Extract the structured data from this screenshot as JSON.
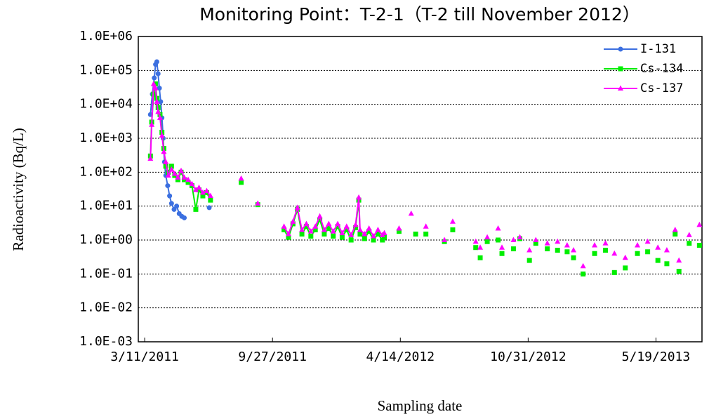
{
  "chart_data": {
    "type": "line",
    "title": "Monitoring Point：T-2-1（T-2 till November 2012）",
    "x_label": "Sampling date",
    "y_label": "Radioactivity (Bq/L)",
    "log_y": true,
    "grid": true,
    "legend": "upper right",
    "xlim": [
      "3/1/2011",
      "7/30/2013"
    ],
    "xticks": [
      "3/11/2011",
      "9/27/2011",
      "4/14/2012",
      "10/31/2012",
      "5/19/2013"
    ],
    "ylim": [
      0.001,
      1000000
    ],
    "yticks": [
      {
        "value": 0.001,
        "label": "1.0E-03"
      },
      {
        "value": 0.01,
        "label": "1.0E-02"
      },
      {
        "value": 0.1,
        "label": "1.0E-01"
      },
      {
        "value": 1,
        "label": "1.0E+00"
      },
      {
        "value": 10,
        "label": "1.0E+01"
      },
      {
        "value": 100,
        "label": "1.0E+02"
      },
      {
        "value": 1000,
        "label": "1.0E+03"
      },
      {
        "value": 10000,
        "label": "1.0E+04"
      },
      {
        "value": 100000,
        "label": "1.0E+05"
      },
      {
        "value": 1000000,
        "label": "1.0E+06"
      }
    ],
    "series": [
      {
        "name": "I-131",
        "color": "#3b6fe0",
        "marker": "circle",
        "x": [
          "3/20/2011",
          "3/23/2011",
          "3/26/2011",
          "3/28/2011",
          "3/30/2011",
          "4/1/2011",
          "4/3/2011",
          "4/5/2011",
          "4/7/2011",
          "4/9/2011",
          "4/11/2011",
          "4/13/2011",
          "4/16/2011",
          "4/19/2011",
          "4/22/2011",
          "4/26/2011",
          "4/30/2011",
          "5/4/2011",
          "5/8/2011",
          "5/12/2011",
          null,
          "6/20/2011"
        ],
        "values": [
          5000,
          20000,
          60000,
          150000,
          180000,
          80000,
          30000,
          12000,
          4000,
          1000,
          200,
          80,
          40,
          20,
          12,
          8,
          10,
          6,
          5,
          4.5,
          null,
          9
        ]
      },
      {
        "name": "Cs-134",
        "color": "#00ee00",
        "marker": "square",
        "x": [
          "3/20/2011",
          "3/22/2011",
          "3/25/2011",
          "3/28/2011",
          "3/30/2011",
          "4/1/2011",
          "4/4/2011",
          "4/7/2011",
          "4/10/2011",
          "4/13/2011",
          "4/17/2011",
          "4/22/2011",
          "4/27/2011",
          "5/2/2011",
          "5/7/2011",
          "5/12/2011",
          "5/18/2011",
          "5/24/2011",
          "5/30/2011",
          "6/4/2011",
          "6/10/2011",
          "6/16/2011",
          "6/22/2011",
          null,
          "8/9/2011",
          null,
          "9/4/2011",
          null,
          "10/15/2011",
          "10/22/2011",
          "10/29/2011",
          "11/5/2011",
          "11/12/2011",
          "11/19/2011",
          "11/26/2011",
          "12/3/2011",
          "12/10/2011",
          "12/17/2011",
          "12/24/2011",
          "12/31/2011",
          "1/7/2012",
          "1/14/2012",
          "1/21/2012",
          "1/28/2012",
          "2/4/2012",
          "2/9/2012",
          "2/11/2012",
          "2/18/2012",
          "2/25/2012",
          "3/3/2012",
          "3/10/2012",
          "3/17/2012",
          "3/20/2012",
          null,
          "4/12/2012",
          null,
          "5/8/2012",
          null,
          "5/24/2012",
          null,
          "6/22/2012",
          null,
          "7/5/2012",
          null,
          "8/10/2012",
          null,
          "8/17/2012",
          null,
          "8/28/2012",
          null,
          "9/14/2012",
          null,
          "9/20/2012",
          null,
          "10/8/2012",
          null,
          "10/18/2012",
          null,
          "11/2/2012",
          null,
          "11/12/2012",
          null,
          "11/30/2012",
          null,
          "12/16/2012",
          null,
          "12/31/2012",
          null,
          "1/10/2013",
          null,
          "1/25/2013",
          null,
          "2/12/2013",
          null,
          "3/1/2013",
          null,
          "3/15/2013",
          null,
          "4/1/2013",
          null,
          "4/20/2013",
          null,
          "5/6/2013",
          null,
          "5/22/2013",
          null,
          "6/5/2013",
          null,
          "6/18/2013",
          null,
          "6/24/2013",
          null,
          "7/10/2013",
          null,
          "7/26/2013"
        ],
        "values": [
          300,
          3000,
          20000,
          40000,
          15000,
          8000,
          5000,
          1500,
          500,
          150,
          100,
          150,
          80,
          60,
          100,
          60,
          50,
          40,
          8,
          30,
          20,
          25,
          15,
          null,
          50,
          null,
          11,
          null,
          2.0,
          1.2,
          3.0,
          8.0,
          1.5,
          2.5,
          1.3,
          2.0,
          4.0,
          1.5,
          2.2,
          1.3,
          2.5,
          1.2,
          2.0,
          1.0,
          2.3,
          15,
          1.5,
          1.1,
          1.8,
          1.0,
          1.5,
          1.0,
          1.2,
          null,
          1.8,
          null,
          1.5,
          null,
          1.5,
          null,
          0.9,
          null,
          2.0,
          null,
          0.6,
          null,
          0.3,
          null,
          0.9,
          null,
          1.0,
          null,
          0.4,
          null,
          0.55,
          null,
          1.1,
          null,
          0.25,
          null,
          0.8,
          null,
          0.55,
          null,
          0.5,
          null,
          0.45,
          null,
          0.3,
          null,
          0.1,
          null,
          0.4,
          null,
          0.5,
          null,
          0.11,
          null,
          0.15,
          null,
          0.4,
          null,
          0.45,
          null,
          0.25,
          null,
          0.2,
          null,
          1.5,
          null,
          0.12,
          null,
          0.8,
          null,
          0.7
        ]
      },
      {
        "name": "Cs-137",
        "color": "#ff00ff",
        "marker": "triangle",
        "x": [
          "3/20/2011",
          "3/22/2011",
          "3/25/2011",
          "3/28/2011",
          "3/30/2011",
          "4/1/2011",
          "4/4/2011",
          "4/7/2011",
          "4/10/2011",
          "4/13/2011",
          "4/17/2011",
          "4/22/2011",
          "4/27/2011",
          "5/2/2011",
          "5/7/2011",
          "5/12/2011",
          "5/18/2011",
          "5/24/2011",
          "5/30/2011",
          "6/4/2011",
          "6/10/2011",
          "6/16/2011",
          "6/22/2011",
          null,
          "8/9/2011",
          null,
          "9/4/2011",
          null,
          "10/15/2011",
          "10/22/2011",
          "10/29/2011",
          "11/5/2011",
          "11/12/2011",
          "11/19/2011",
          "11/26/2011",
          "12/3/2011",
          "12/10/2011",
          "12/17/2011",
          "12/24/2011",
          "12/31/2011",
          "1/7/2012",
          "1/14/2012",
          "1/21/2012",
          "1/28/2012",
          "2/4/2012",
          "2/9/2012",
          "2/11/2012",
          "2/18/2012",
          "2/25/2012",
          "3/3/2012",
          "3/10/2012",
          "3/17/2012",
          "3/20/2012",
          null,
          "4/12/2012",
          null,
          "5/1/2012",
          null,
          "5/24/2012",
          null,
          "6/22/2012",
          null,
          "7/5/2012",
          null,
          "8/10/2012",
          null,
          "8/17/2012",
          null,
          "8/28/2012",
          null,
          "9/14/2012",
          null,
          "9/20/2012",
          null,
          "10/8/2012",
          null,
          "10/18/2012",
          null,
          "11/2/2012",
          null,
          "11/12/2012",
          null,
          "11/30/2012",
          null,
          "12/16/2012",
          null,
          "12/31/2012",
          null,
          "1/10/2013",
          null,
          "1/25/2013",
          null,
          "2/12/2013",
          null,
          "3/1/2013",
          null,
          "3/15/2013",
          null,
          "4/1/2013",
          null,
          "4/20/2013",
          null,
          "5/6/2013",
          null,
          "5/22/2013",
          null,
          "6/5/2013",
          null,
          "6/18/2013",
          null,
          "6/24/2013",
          null,
          "7/10/2013",
          null,
          "7/26/2013"
        ],
        "values": [
          250,
          2500,
          40000,
          30000,
          12000,
          6000,
          4000,
          1200,
          400,
          200,
          80,
          120,
          90,
          70,
          110,
          70,
          60,
          45,
          30,
          35,
          25,
          28,
          20,
          null,
          65,
          null,
          12,
          null,
          2.5,
          1.5,
          3.5,
          9.0,
          2.0,
          3.0,
          1.8,
          2.5,
          5.0,
          2.0,
          3.0,
          1.8,
          3.0,
          1.6,
          2.5,
          1.4,
          2.8,
          18,
          2.0,
          1.5,
          2.2,
          1.3,
          2.0,
          1.4,
          1.6,
          null,
          2.2,
          null,
          6.0,
          null,
          2.5,
          null,
          1.0,
          null,
          3.5,
          null,
          0.9,
          null,
          0.6,
          null,
          1.2,
          null,
          2.2,
          null,
          0.6,
          null,
          1.0,
          null,
          1.2,
          null,
          0.5,
          null,
          1.0,
          null,
          0.8,
          null,
          0.9,
          null,
          0.7,
          null,
          0.5,
          null,
          0.17,
          null,
          0.7,
          null,
          0.8,
          null,
          0.4,
          null,
          0.3,
          null,
          0.7,
          null,
          0.9,
          null,
          0.6,
          null,
          0.5,
          null,
          2.0,
          null,
          0.25,
          null,
          1.4,
          null,
          2.8
        ]
      }
    ]
  }
}
